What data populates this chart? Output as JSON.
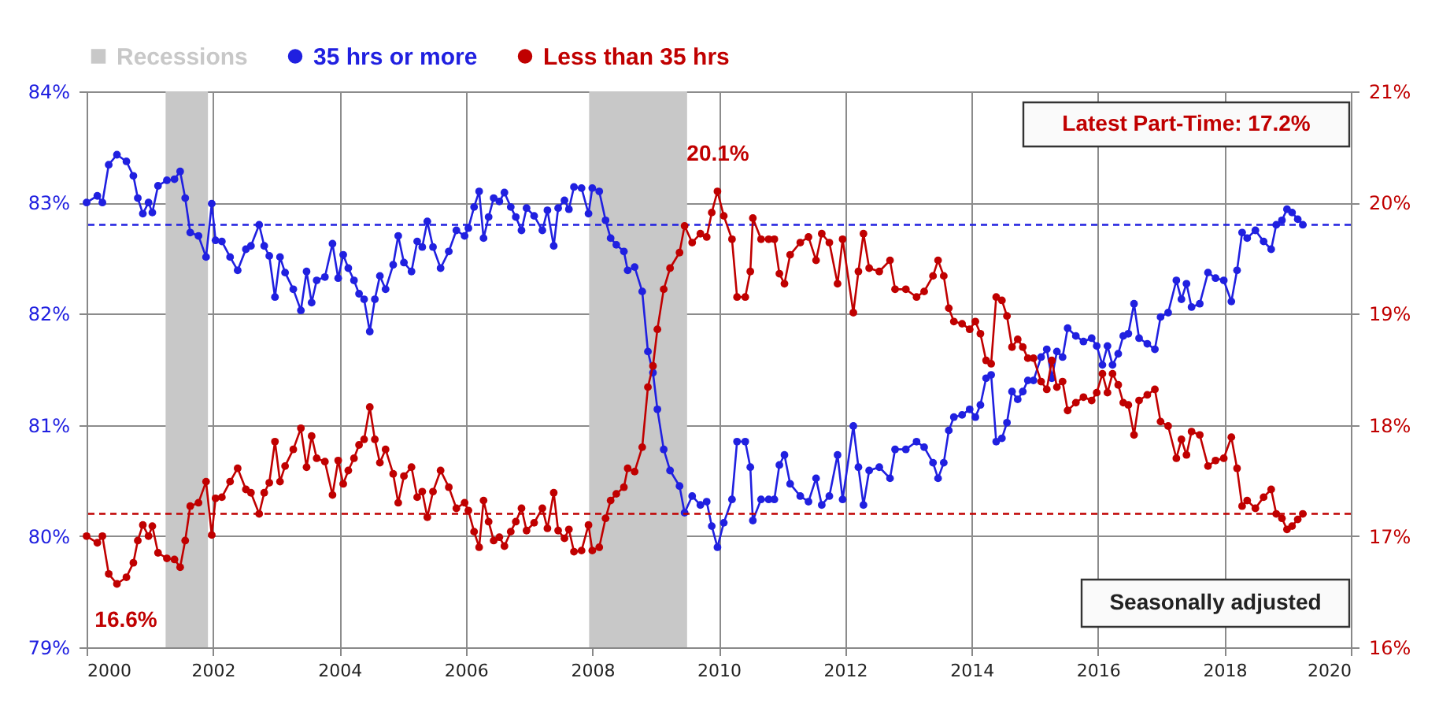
{
  "chart_data": {
    "type": "line",
    "legend": "top",
    "grid": true,
    "marker": "circle",
    "line_style": "solid",
    "x": [
      2000.0,
      2000.17,
      2000.25,
      2000.35,
      2000.48,
      2000.63,
      2000.74,
      2000.81,
      2000.89,
      2000.98,
      2001.04,
      2001.13,
      2001.27,
      2001.39,
      2001.48,
      2001.56,
      2001.64,
      2001.77,
      2001.89,
      2001.98,
      2002.04,
      2002.14,
      2002.27,
      2002.39,
      2002.52,
      2002.6,
      2002.73,
      2002.81,
      2002.89,
      2002.98,
      2003.06,
      2003.14,
      2003.27,
      2003.39,
      2003.48,
      2003.56,
      2003.64,
      2003.77,
      2003.89,
      2003.98,
      2004.06,
      2004.14,
      2004.23,
      2004.31,
      2004.39,
      2004.48,
      2004.56,
      2004.64,
      2004.73,
      2004.85,
      2004.93,
      2005.02,
      2005.14,
      2005.23,
      2005.31,
      2005.39,
      2005.48,
      2005.6,
      2005.73,
      2005.85,
      2005.98,
      2006.04,
      2006.13,
      2006.21,
      2006.28,
      2006.36,
      2006.44,
      2006.53,
      2006.61,
      2006.71,
      2006.79,
      2006.88,
      2006.96,
      2007.08,
      2007.21,
      2007.29,
      2007.39,
      2007.46,
      2007.56,
      2007.63,
      2007.71,
      2007.83,
      2007.94,
      2008.0,
      2008.11,
      2008.21,
      2008.29,
      2008.38,
      2008.5,
      2008.56,
      2008.67,
      2008.79,
      2008.88,
      2008.96,
      2009.03,
      2009.13,
      2009.23,
      2009.38,
      2009.46,
      2009.58,
      2009.71,
      2009.81,
      2009.89,
      2009.98,
      2010.08,
      2010.21,
      2010.29,
      2010.42,
      2010.5,
      2010.54,
      2010.67,
      2010.79,
      2010.88,
      2010.96,
      2011.04,
      2011.13,
      2011.29,
      2011.42,
      2011.54,
      2011.63,
      2011.75,
      2011.88,
      2011.96,
      2012.13,
      2012.21,
      2012.29,
      2012.38,
      2012.54,
      2012.71,
      2012.79,
      2012.96,
      2013.13,
      2013.25,
      2013.39,
      2013.47,
      2013.56,
      2013.64,
      2013.72,
      2013.85,
      2013.97,
      2014.06,
      2014.14,
      2014.23,
      2014.31,
      2014.39,
      2014.48,
      2014.56,
      2014.64,
      2014.73,
      2014.81,
      2014.89,
      2014.98,
      2015.1,
      2015.19,
      2015.27,
      2015.35,
      2015.44,
      2015.52,
      2015.65,
      2015.77,
      2015.9,
      2015.98,
      2016.07,
      2016.15,
      2016.23,
      2016.32,
      2016.4,
      2016.48,
      2016.57,
      2016.65,
      2016.78,
      2016.9,
      2016.99,
      2017.11,
      2017.24,
      2017.32,
      2017.4,
      2017.48,
      2017.61,
      2017.74,
      2017.86,
      2017.99,
      2018.11,
      2018.2,
      2018.28,
      2018.36,
      2018.49,
      2018.62,
      2018.74,
      2018.82,
      2018.91,
      2018.99,
      2019.07,
      2019.16,
      2019.24
    ],
    "series": [
      {
        "name": "35 hrs or more",
        "color": "#2020e0",
        "values": [
          83.0,
          83.06,
          83.0,
          83.34,
          83.43,
          83.37,
          83.24,
          83.04,
          82.9,
          83.0,
          82.91,
          83.15,
          83.2,
          83.21,
          83.28,
          83.04,
          82.73,
          82.7,
          82.51,
          82.99,
          82.66,
          82.65,
          82.51,
          82.39,
          82.58,
          82.61,
          82.8,
          82.61,
          82.52,
          82.15,
          82.51,
          82.37,
          82.22,
          82.03,
          82.38,
          82.1,
          82.3,
          82.33,
          82.63,
          82.32,
          82.53,
          82.41,
          82.3,
          82.18,
          82.13,
          81.84,
          82.13,
          82.34,
          82.22,
          82.44,
          82.7,
          82.46,
          82.38,
          82.65,
          82.6,
          82.83,
          82.6,
          82.41,
          82.56,
          82.75,
          82.7,
          82.77,
          82.96,
          83.1,
          82.68,
          82.87,
          83.04,
          83.01,
          83.09,
          82.96,
          82.87,
          82.75,
          82.95,
          82.88,
          82.75,
          82.93,
          82.61,
          82.95,
          83.02,
          82.94,
          83.14,
          83.13,
          82.9,
          83.13,
          83.1,
          82.84,
          82.68,
          82.62,
          82.56,
          82.39,
          82.42,
          82.2,
          81.66,
          81.47,
          81.14,
          80.78,
          80.59,
          80.45,
          80.21,
          80.36,
          80.28,
          80.31,
          80.09,
          79.9,
          80.12,
          80.33,
          80.85,
          80.85,
          80.62,
          80.14,
          80.33,
          80.33,
          80.33,
          80.64,
          80.73,
          80.47,
          80.36,
          80.31,
          80.52,
          80.28,
          80.36,
          80.73,
          80.33,
          80.99,
          80.62,
          80.28,
          80.59,
          80.62,
          80.52,
          80.78,
          80.78,
          80.85,
          80.8,
          80.66,
          80.52,
          80.66,
          80.95,
          81.07,
          81.09,
          81.14,
          81.07,
          81.18,
          81.42,
          81.45,
          80.85,
          80.88,
          81.02,
          81.3,
          81.23,
          81.3,
          81.4,
          81.4,
          81.61,
          81.68,
          81.42,
          81.66,
          81.61,
          81.87,
          81.8,
          81.75,
          81.78,
          81.71,
          81.54,
          81.71,
          81.54,
          81.64,
          81.8,
          81.82,
          82.09,
          81.78,
          81.73,
          81.68,
          81.97,
          82.01,
          82.3,
          82.13,
          82.27,
          82.06,
          82.09,
          82.37,
          82.32,
          82.3,
          82.11,
          82.39,
          82.73,
          82.68,
          82.75,
          82.65,
          82.58,
          82.8,
          82.84,
          82.94,
          82.91,
          82.85,
          82.8
        ]
      },
      {
        "name": "Less than 35 hrs",
        "color": "#c00000",
        "axis": "y2",
        "values": [
          17.0,
          16.94,
          17.0,
          16.66,
          16.57,
          16.63,
          16.76,
          16.96,
          17.1,
          17.0,
          17.09,
          16.85,
          16.8,
          16.79,
          16.72,
          16.96,
          17.27,
          17.3,
          17.49,
          17.01,
          17.34,
          17.35,
          17.49,
          17.61,
          17.42,
          17.39,
          17.2,
          17.39,
          17.48,
          17.85,
          17.49,
          17.63,
          17.78,
          17.97,
          17.62,
          17.9,
          17.7,
          17.67,
          17.37,
          17.68,
          17.47,
          17.59,
          17.7,
          17.82,
          17.87,
          18.16,
          17.87,
          17.66,
          17.78,
          17.56,
          17.3,
          17.54,
          17.62,
          17.35,
          17.4,
          17.17,
          17.4,
          17.59,
          17.44,
          17.25,
          17.3,
          17.23,
          17.04,
          16.9,
          17.32,
          17.13,
          16.96,
          16.99,
          16.91,
          17.04,
          17.13,
          17.25,
          17.05,
          17.12,
          17.25,
          17.07,
          17.39,
          17.05,
          16.98,
          17.06,
          16.86,
          16.87,
          17.1,
          16.87,
          16.9,
          17.16,
          17.32,
          17.38,
          17.44,
          17.61,
          17.58,
          17.8,
          18.34,
          18.53,
          18.86,
          19.22,
          19.41,
          19.55,
          19.79,
          19.64,
          19.72,
          19.69,
          19.91,
          20.1,
          19.88,
          19.67,
          19.15,
          19.15,
          19.38,
          19.86,
          19.67,
          19.67,
          19.67,
          19.36,
          19.27,
          19.53,
          19.64,
          19.69,
          19.48,
          19.72,
          19.64,
          19.27,
          19.67,
          19.01,
          19.38,
          19.72,
          19.41,
          19.38,
          19.48,
          19.22,
          19.22,
          19.15,
          19.2,
          19.34,
          19.48,
          19.34,
          19.05,
          18.93,
          18.91,
          18.86,
          18.93,
          18.82,
          18.58,
          18.55,
          19.15,
          19.12,
          18.98,
          18.7,
          18.77,
          18.7,
          18.6,
          18.6,
          18.39,
          18.32,
          18.58,
          18.34,
          18.39,
          18.13,
          18.2,
          18.25,
          18.22,
          18.29,
          18.46,
          18.29,
          18.46,
          18.36,
          18.2,
          18.18,
          17.91,
          18.22,
          18.27,
          18.32,
          18.03,
          17.99,
          17.7,
          17.87,
          17.73,
          17.94,
          17.91,
          17.63,
          17.68,
          17.7,
          17.89,
          17.61,
          17.27,
          17.32,
          17.25,
          17.35,
          17.42,
          17.2,
          17.16,
          17.06,
          17.09,
          17.15,
          17.2
        ]
      }
    ],
    "xlim": [
      2000,
      2020
    ],
    "xticks": [
      2000,
      2002,
      2004,
      2006,
      2008,
      2010,
      2012,
      2014,
      2016,
      2018,
      2020
    ],
    "ylim": [
      79,
      84
    ],
    "yticks": [
      {
        "value": 79,
        "label": "79%"
      },
      {
        "value": 80,
        "label": "80%"
      },
      {
        "value": 81,
        "label": "81%"
      },
      {
        "value": 82,
        "label": "82%"
      },
      {
        "value": 83,
        "label": "83%"
      },
      {
        "value": 84,
        "label": "84%"
      }
    ],
    "y2lim": [
      16,
      21
    ],
    "y2ticks": [
      {
        "value": 16,
        "label": "16%"
      },
      {
        "value": 17,
        "label": "17%"
      },
      {
        "value": 18,
        "label": "18%"
      },
      {
        "value": 19,
        "label": "19%"
      },
      {
        "value": 20,
        "label": "20%"
      },
      {
        "value": 21,
        "label": "21%"
      }
    ],
    "bands": [
      {
        "axis": "x",
        "from": 2001.25,
        "to": 2001.92,
        "label": "Recessions",
        "color": "#c8c8c8"
      },
      {
        "axis": "x",
        "from": 2007.95,
        "to": 2009.5,
        "color": "#c8c8c8"
      }
    ],
    "ref_lines": [
      {
        "axis": "y",
        "value": 82.8,
        "color": "#2020e0",
        "line_style": "dashed"
      },
      {
        "axis": "y2",
        "value": 17.2,
        "color": "#c00000",
        "line_style": "dashed"
      }
    ],
    "annotations": [
      "16.6%",
      "20.1%",
      "Latest Part-Time: 17.2%",
      "Seasonally adjusted"
    ]
  }
}
